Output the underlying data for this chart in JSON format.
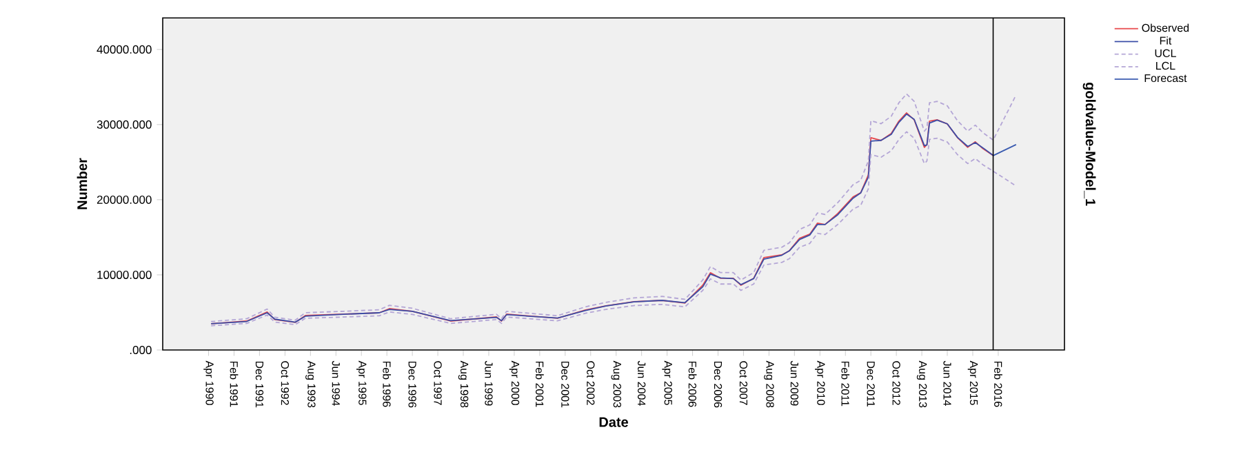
{
  "chart_data": {
    "type": "line",
    "xlabel": "Date",
    "ylabel": "Number",
    "annotations": [
      "goldvalue-Model_1"
    ],
    "xlim": [
      "1988-10",
      "2018-04"
    ],
    "ylim": [
      0,
      44200
    ],
    "yticks": [
      {
        "value": 0,
        "label": ".000"
      },
      {
        "value": 10000,
        "label": "10000.000"
      },
      {
        "value": 20000,
        "label": "20000.000"
      },
      {
        "value": 30000,
        "label": "30000.000"
      },
      {
        "value": 40000,
        "label": "40000.000"
      }
    ],
    "xticks": [
      {
        "value": "1990-04",
        "label": "Apr 1990"
      },
      {
        "value": "1991-02",
        "label": "Feb 1991"
      },
      {
        "value": "1991-12",
        "label": "Dec 1991"
      },
      {
        "value": "1992-10",
        "label": "Oct 1992"
      },
      {
        "value": "1993-08",
        "label": "Aug 1993"
      },
      {
        "value": "1994-06",
        "label": "Jun 1994"
      },
      {
        "value": "1995-04",
        "label": "Apr 1995"
      },
      {
        "value": "1996-02",
        "label": "Feb 1996"
      },
      {
        "value": "1996-12",
        "label": "Dec 1996"
      },
      {
        "value": "1997-10",
        "label": "Oct 1997"
      },
      {
        "value": "1998-08",
        "label": "Aug 1998"
      },
      {
        "value": "1999-06",
        "label": "Jun 1999"
      },
      {
        "value": "2000-04",
        "label": "Apr 2000"
      },
      {
        "value": "2001-02",
        "label": "Feb 2001"
      },
      {
        "value": "2001-12",
        "label": "Dec 2001"
      },
      {
        "value": "2002-10",
        "label": "Oct 2002"
      },
      {
        "value": "2003-08",
        "label": "Aug 2003"
      },
      {
        "value": "2004-06",
        "label": "Jun 2004"
      },
      {
        "value": "2005-04",
        "label": "Apr 2005"
      },
      {
        "value": "2006-02",
        "label": "Feb 2006"
      },
      {
        "value": "2006-12",
        "label": "Dec 2006"
      },
      {
        "value": "2007-10",
        "label": "Oct 2007"
      },
      {
        "value": "2008-08",
        "label": "Aug 2008"
      },
      {
        "value": "2009-06",
        "label": "Jun 2009"
      },
      {
        "value": "2010-04",
        "label": "Apr 2010"
      },
      {
        "value": "2011-02",
        "label": "Feb 2011"
      },
      {
        "value": "2011-12",
        "label": "Dec 2011"
      },
      {
        "value": "2012-10",
        "label": "Oct 2012"
      },
      {
        "value": "2013-08",
        "label": "Aug 2013"
      },
      {
        "value": "2014-06",
        "label": "Jun 2014"
      },
      {
        "value": "2015-04",
        "label": "Apr 2015"
      },
      {
        "value": "2016-02",
        "label": "Feb 2016"
      }
    ],
    "grid": false,
    "legend": "right",
    "ref_lines": [
      {
        "axis": "x",
        "value": "2015-12",
        "color": "#000000"
      }
    ],
    "series": [
      {
        "name": "Observed",
        "color": "#e8474a",
        "line_style": "solid",
        "x": [
          "1990-05",
          "1991-07",
          "1992-03",
          "1992-06",
          "1993-02",
          "1993-06",
          "1994-09",
          "1995-11",
          "1996-03",
          "1996-12",
          "1998-03",
          "1999-09",
          "1999-11",
          "2000-01",
          "2001-09",
          "2002-08",
          "2003-04",
          "2004-03",
          "2005-02",
          "2005-11",
          "2006-06",
          "2006-09",
          "2007-01",
          "2007-06",
          "2007-09",
          "2008-02",
          "2008-06",
          "2009-01",
          "2009-04",
          "2009-08",
          "2009-12",
          "2010-03",
          "2010-06",
          "2010-11",
          "2011-05",
          "2011-08",
          "2011-11",
          "2011-12",
          "2012-04",
          "2012-08",
          "2012-11",
          "2013-02",
          "2013-05",
          "2013-09",
          "2013-10",
          "2013-11",
          "2014-02",
          "2014-06",
          "2014-10",
          "2015-02",
          "2015-05",
          "2015-08",
          "2015-12"
        ],
        "values": [
          3500,
          3850,
          5050,
          4040,
          3670,
          4590,
          4770,
          4950,
          5500,
          5140,
          3850,
          4400,
          3850,
          4770,
          4220,
          5320,
          5870,
          6420,
          6600,
          6240,
          8620,
          10280,
          9540,
          9540,
          8620,
          9540,
          12290,
          12660,
          13210,
          14860,
          15410,
          16880,
          16700,
          18160,
          20370,
          20920,
          23300,
          28260,
          27890,
          28810,
          30460,
          31560,
          30640,
          26970,
          27340,
          30460,
          30640,
          30090,
          28260,
          26970,
          27710,
          26790,
          25870
        ]
      },
      {
        "name": "Fit",
        "color": "#3c4fa8",
        "line_style": "solid",
        "x": [
          "1990-05",
          "1991-07",
          "1992-03",
          "1992-06",
          "1993-02",
          "1993-06",
          "1994-09",
          "1995-11",
          "1996-03",
          "1996-12",
          "1998-03",
          "1999-09",
          "1999-11",
          "2000-01",
          "2001-09",
          "2002-08",
          "2003-04",
          "2004-03",
          "2005-02",
          "2005-11",
          "2006-06",
          "2006-09",
          "2007-01",
          "2007-06",
          "2007-09",
          "2008-02",
          "2008-06",
          "2009-01",
          "2009-04",
          "2009-08",
          "2009-12",
          "2010-03",
          "2010-06",
          "2010-11",
          "2011-05",
          "2011-08",
          "2011-11",
          "2011-12",
          "2012-04",
          "2012-08",
          "2012-11",
          "2013-02",
          "2013-05",
          "2013-09",
          "2013-10",
          "2013-11",
          "2014-02",
          "2014-06",
          "2014-10",
          "2015-02",
          "2015-05",
          "2015-08",
          "2015-12"
        ],
        "values": [
          3500,
          3800,
          4950,
          4100,
          3700,
          4500,
          4750,
          4950,
          5400,
          5150,
          3900,
          4350,
          3900,
          4700,
          4250,
          5250,
          5850,
          6400,
          6600,
          6300,
          8400,
          10100,
          9600,
          9500,
          8700,
          9500,
          12100,
          12600,
          13200,
          14700,
          15300,
          16700,
          16700,
          18000,
          20200,
          20900,
          23000,
          27800,
          27900,
          28700,
          30300,
          31400,
          30700,
          27200,
          27300,
          30200,
          30600,
          30100,
          28300,
          27100,
          27600,
          26900,
          25900
        ]
      },
      {
        "name": "UCL",
        "color": "#b4a6d6",
        "line_style": "dashed",
        "x": [
          "1990-05",
          "1991-07",
          "1992-03",
          "1992-06",
          "1993-02",
          "1993-06",
          "1994-09",
          "1995-11",
          "1996-03",
          "1996-12",
          "1998-03",
          "1999-09",
          "1999-11",
          "2000-01",
          "2001-09",
          "2002-08",
          "2003-04",
          "2004-03",
          "2005-02",
          "2005-11",
          "2006-06",
          "2006-09",
          "2007-01",
          "2007-06",
          "2007-09",
          "2008-02",
          "2008-06",
          "2009-01",
          "2009-04",
          "2009-08",
          "2009-12",
          "2010-03",
          "2010-06",
          "2010-11",
          "2011-05",
          "2011-08",
          "2011-11",
          "2011-12",
          "2012-04",
          "2012-08",
          "2012-11",
          "2013-02",
          "2013-05",
          "2013-09",
          "2013-10",
          "2013-11",
          "2014-02",
          "2014-06",
          "2014-10",
          "2015-02",
          "2015-05",
          "2015-08",
          "2015-12",
          "2016-09"
        ],
        "values": [
          3780,
          4160,
          5450,
          4360,
          3960,
          4960,
          5150,
          5350,
          5940,
          5550,
          4160,
          4750,
          4160,
          5150,
          4560,
          5750,
          6340,
          6930,
          7130,
          6740,
          9310,
          11100,
          10300,
          10300,
          9310,
          10300,
          13270,
          13670,
          14270,
          16050,
          16640,
          18230,
          18040,
          19610,
          22000,
          22590,
          25160,
          30520,
          30120,
          31110,
          32900,
          34080,
          33090,
          29130,
          29530,
          32900,
          33090,
          32500,
          30520,
          29130,
          29930,
          28930,
          27940,
          33940
        ]
      },
      {
        "name": "LCL",
        "color": "#b4a6d6",
        "line_style": "dashed",
        "x": [
          "1990-05",
          "1991-07",
          "1992-03",
          "1992-06",
          "1993-02",
          "1993-06",
          "1994-09",
          "1995-11",
          "1996-03",
          "1996-12",
          "1998-03",
          "1999-09",
          "1999-11",
          "2000-01",
          "2001-09",
          "2002-08",
          "2003-04",
          "2004-03",
          "2005-02",
          "2005-11",
          "2006-06",
          "2006-09",
          "2007-01",
          "2007-06",
          "2007-09",
          "2008-02",
          "2008-06",
          "2009-01",
          "2009-04",
          "2009-08",
          "2009-12",
          "2010-03",
          "2010-06",
          "2010-11",
          "2011-05",
          "2011-08",
          "2011-11",
          "2011-12",
          "2012-04",
          "2012-08",
          "2012-11",
          "2013-02",
          "2013-05",
          "2013-09",
          "2013-10",
          "2013-11",
          "2014-02",
          "2014-06",
          "2014-10",
          "2015-02",
          "2015-05",
          "2015-08",
          "2015-12",
          "2016-09"
        ],
        "values": [
          3220,
          3540,
          4650,
          3720,
          3380,
          4220,
          4390,
          4550,
          5060,
          4730,
          3540,
          4050,
          3540,
          4390,
          3880,
          4890,
          5400,
          5910,
          6070,
          5740,
          7930,
          9460,
          8780,
          8780,
          7930,
          8780,
          11310,
          11650,
          12150,
          13670,
          14180,
          15530,
          15360,
          16710,
          18740,
          19250,
          21440,
          26000,
          25660,
          26510,
          28020,
          29040,
          28190,
          24810,
          25150,
          28020,
          28190,
          27680,
          26000,
          24810,
          25490,
          24650,
          23800,
          21830
        ]
      },
      {
        "name": "Forecast",
        "color": "#3a5bb0",
        "line_style": "solid",
        "x": [
          "2015-12",
          "2016-09"
        ],
        "values": [
          25870,
          27340
        ]
      }
    ]
  }
}
